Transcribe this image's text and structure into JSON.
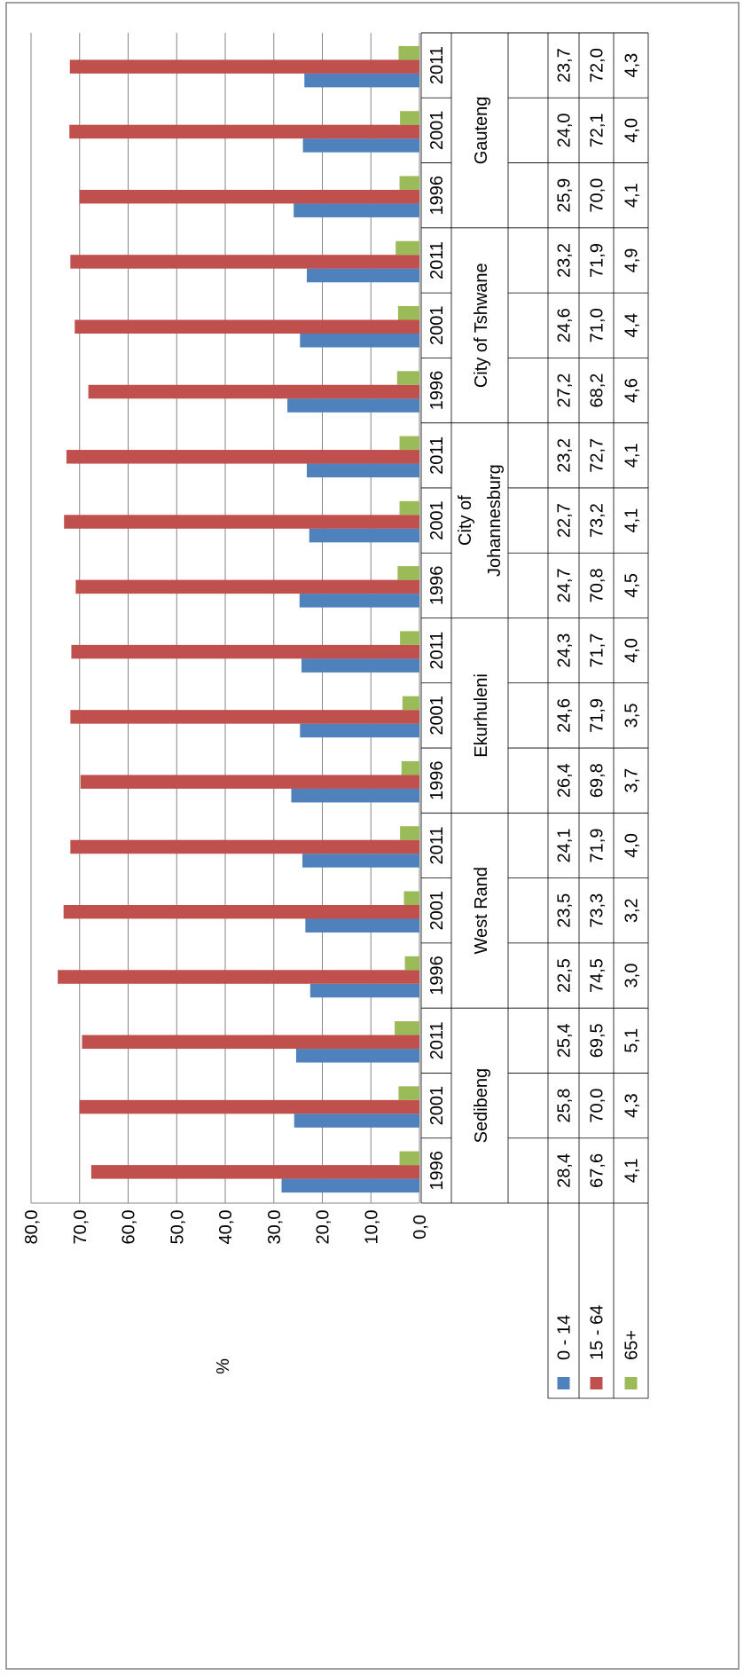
{
  "chart_data": {
    "type": "bar",
    "orientation": "rotated-90-clockwise",
    "ylabel": "%",
    "ylim": [
      0,
      80
    ],
    "yticks": [
      "0,0",
      "10,0",
      "20,0",
      "30,0",
      "40,0",
      "50,0",
      "60,0",
      "70,0",
      "80,0"
    ],
    "grid": true,
    "legend": "embedded in data table",
    "groups": [
      {
        "name": "Sedibeng",
        "years": [
          "1996",
          "2001",
          "2011"
        ]
      },
      {
        "name": "West Rand",
        "years": [
          "1996",
          "2001",
          "2011"
        ]
      },
      {
        "name": "Ekurhuleni",
        "years": [
          "1996",
          "2001",
          "2011"
        ]
      },
      {
        "name": "City of Johannesburg",
        "name_lines": [
          "City of",
          "Johannesburg"
        ],
        "years": [
          "1996",
          "2001",
          "2011"
        ]
      },
      {
        "name": "City of Tshwane",
        "years": [
          "1996",
          "2001",
          "2011"
        ]
      },
      {
        "name": "Gauteng",
        "years": [
          "1996",
          "2001",
          "2011"
        ]
      }
    ],
    "series": [
      {
        "name": "0 - 14",
        "color": "#4F81BD",
        "values": [
          28.4,
          25.8,
          25.4,
          22.5,
          23.5,
          24.1,
          26.4,
          24.6,
          24.3,
          24.7,
          22.7,
          23.2,
          27.2,
          24.6,
          23.2,
          25.9,
          24.0,
          23.7
        ],
        "labels": [
          "28,4",
          "25,8",
          "25,4",
          "22,5",
          "23,5",
          "24,1",
          "26,4",
          "24,6",
          "24,3",
          "24,7",
          "22,7",
          "23,2",
          "27,2",
          "24,6",
          "23,2",
          "25,9",
          "24,0",
          "23,7"
        ]
      },
      {
        "name": "15 - 64",
        "color": "#C0504D",
        "values": [
          67.6,
          70.0,
          69.5,
          74.5,
          73.3,
          71.9,
          69.8,
          71.9,
          71.7,
          70.8,
          73.2,
          72.7,
          68.2,
          71.0,
          71.9,
          70.0,
          72.1,
          72.0
        ],
        "labels": [
          "67,6",
          "70,0",
          "69,5",
          "74,5",
          "73,3",
          "71,9",
          "69,8",
          "71,9",
          "71,7",
          "70,8",
          "73,2",
          "72,7",
          "68,2",
          "71,0",
          "71,9",
          "70,0",
          "72,1",
          "72,0"
        ]
      },
      {
        "name": "65+",
        "color": "#9BBB59",
        "values": [
          4.1,
          4.3,
          5.1,
          3.0,
          3.2,
          4.0,
          3.7,
          3.5,
          4.0,
          4.5,
          4.1,
          4.1,
          4.6,
          4.4,
          4.9,
          4.1,
          4.0,
          4.3
        ],
        "labels": [
          "4,1",
          "4,3",
          "5,1",
          "3,0",
          "3,2",
          "4,0",
          "3,7",
          "3,5",
          "4,0",
          "4,5",
          "4,1",
          "4,1",
          "4,6",
          "4,4",
          "4,9",
          "4,1",
          "4,0",
          "4,3"
        ]
      }
    ]
  }
}
